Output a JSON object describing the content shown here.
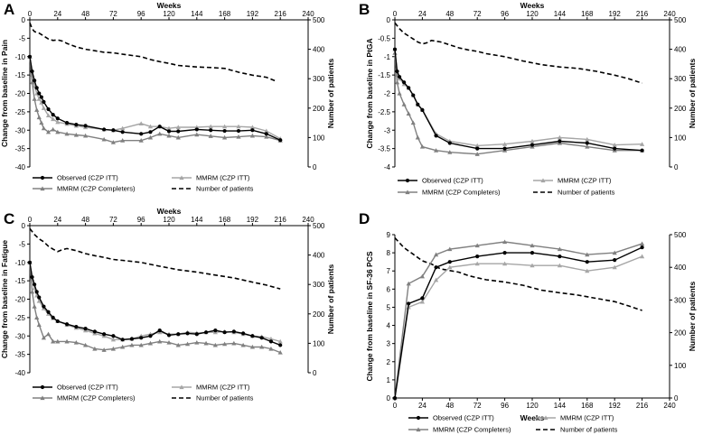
{
  "figure": {
    "legend_labels": {
      "observed": "Observed (CZP ITT)",
      "mmrm": "MMRM (CZP ITT)",
      "completers": "MMRM (CZP Completers)",
      "patients": "Number of patients"
    },
    "colors": {
      "observed": "#000000",
      "mmrm": "#a6a6a6",
      "completers": "#808080",
      "patients": "#000000"
    }
  },
  "chart_data": [
    {
      "panel": "A",
      "type": "line",
      "xlabel": "Weeks",
      "ylabel": "Change from baseline in Pain",
      "y2label": "Number of patients",
      "xticks": [
        "0",
        "24",
        "48",
        "72",
        "96",
        "120",
        "144",
        "168",
        "192",
        "216",
        "240"
      ],
      "yticks": [
        "0",
        "-5",
        "-10",
        "-15",
        "-20",
        "-25",
        "-30",
        "-35",
        "-40"
      ],
      "y2ticks": [
        "0",
        "100",
        "200",
        "300",
        "400",
        "500"
      ],
      "xlim": [
        0,
        240
      ],
      "ylim": [
        -40,
        0
      ],
      "y2lim": [
        0,
        500
      ],
      "series": [
        {
          "name": "Observed (CZP ITT)",
          "key": "observed",
          "x": [
            0,
            2,
            4,
            6,
            8,
            10,
            12,
            16,
            20,
            24,
            32,
            40,
            48,
            64,
            72,
            80,
            96,
            104,
            112,
            120,
            128,
            144,
            156,
            168,
            180,
            192,
            204,
            216
          ],
          "y": [
            -10,
            -14,
            -16.5,
            -18.5,
            -20,
            -21,
            -22.3,
            -24.3,
            -25.8,
            -26.8,
            -28,
            -28.5,
            -28.8,
            -29.8,
            -30,
            -30.5,
            -31,
            -30.5,
            -29,
            -30.3,
            -30.3,
            -29.8,
            -30,
            -30.2,
            -30.2,
            -30,
            -31,
            -32.7
          ]
        },
        {
          "name": "MMRM (CZP ITT)",
          "key": "mmrm",
          "x": [
            0,
            2,
            4,
            6,
            8,
            10,
            12,
            16,
            20,
            24,
            32,
            40,
            48,
            64,
            72,
            80,
            96,
            104,
            112,
            120,
            128,
            144,
            156,
            168,
            180,
            192,
            204,
            216
          ],
          "y": [
            -10,
            -15,
            -18,
            -20,
            -21.5,
            -22.5,
            -24,
            -26,
            -27,
            -27.8,
            -28.3,
            -28.8,
            -29.2,
            -29.8,
            -30,
            -29.5,
            -28.2,
            -29,
            -29,
            -29.5,
            -29.2,
            -29.2,
            -29,
            -29,
            -29,
            -29.2,
            -30.2,
            -32.3
          ]
        },
        {
          "name": "MMRM (CZP Completers)",
          "key": "completers",
          "x": [
            0,
            2,
            4,
            6,
            8,
            10,
            12,
            16,
            20,
            24,
            32,
            40,
            48,
            64,
            72,
            80,
            96,
            104,
            112,
            120,
            128,
            144,
            156,
            168,
            180,
            192,
            204,
            216
          ],
          "y": [
            -10,
            -17,
            -21.5,
            -24.5,
            -26.5,
            -28,
            -29.5,
            -30.5,
            -29.8,
            -30.5,
            -31,
            -31.3,
            -31.5,
            -32.5,
            -33.3,
            -32.8,
            -32.8,
            -32,
            -31,
            -31.5,
            -32,
            -31.2,
            -31.6,
            -32,
            -31.8,
            -31.5,
            -31.8,
            -32.8
          ]
        },
        {
          "name": "Number of patients",
          "key": "patients",
          "axis": "right",
          "x": [
            0,
            2,
            4,
            8,
            12,
            16,
            20,
            24,
            28,
            32,
            40,
            48,
            56,
            64,
            72,
            80,
            96,
            104,
            112,
            120,
            128,
            144,
            156,
            168,
            180,
            192,
            204,
            212
          ],
          "y": [
            490,
            470,
            460,
            455,
            445,
            435,
            430,
            432,
            428,
            420,
            408,
            400,
            395,
            390,
            388,
            383,
            375,
            365,
            358,
            352,
            345,
            340,
            338,
            335,
            322,
            312,
            305,
            292
          ]
        }
      ]
    },
    {
      "panel": "B",
      "type": "line",
      "xlabel": "Weeks",
      "ylabel": "Change from baseline in PtGA",
      "y2label": "Number of patients",
      "xticks": [
        "0",
        "24",
        "48",
        "72",
        "96",
        "120",
        "144",
        "168",
        "192",
        "216",
        "240"
      ],
      "yticks": [
        "0",
        "-0.5",
        "-1",
        "-1.5",
        "-2",
        "-2.5",
        "-3",
        "-3.5",
        "-4"
      ],
      "y2ticks": [
        "0",
        "100",
        "200",
        "300",
        "400",
        "500"
      ],
      "xlim": [
        0,
        240
      ],
      "ylim": [
        -4,
        0
      ],
      "y2lim": [
        0,
        500
      ],
      "series": [
        {
          "name": "Observed (CZP ITT)",
          "key": "observed",
          "x": [
            0,
            2,
            4,
            8,
            12,
            16,
            20,
            24,
            36,
            48,
            72,
            96,
            120,
            144,
            168,
            192,
            216
          ],
          "y": [
            -0.8,
            -1.4,
            -1.55,
            -1.7,
            -1.85,
            -2.05,
            -2.3,
            -2.45,
            -3.15,
            -3.35,
            -3.5,
            -3.5,
            -3.4,
            -3.3,
            -3.35,
            -3.5,
            -3.55
          ]
        },
        {
          "name": "MMRM (CZP ITT)",
          "key": "mmrm",
          "x": [
            0,
            2,
            4,
            8,
            12,
            16,
            20,
            24,
            36,
            48,
            72,
            96,
            120,
            144,
            168,
            192,
            216
          ],
          "y": [
            -0.8,
            -1.5,
            -1.6,
            -1.75,
            -1.85,
            -2.05,
            -2.3,
            -2.45,
            -3.1,
            -3.3,
            -3.42,
            -3.38,
            -3.3,
            -3.2,
            -3.25,
            -3.4,
            -3.38
          ]
        },
        {
          "name": "MMRM (CZP Completers)",
          "key": "completers",
          "x": [
            0,
            2,
            4,
            8,
            12,
            16,
            20,
            24,
            36,
            48,
            72,
            96,
            120,
            144,
            168,
            192,
            216
          ],
          "y": [
            -0.9,
            -1.7,
            -2.0,
            -2.3,
            -2.55,
            -2.8,
            -3.2,
            -3.45,
            -3.55,
            -3.6,
            -3.65,
            -3.55,
            -3.45,
            -3.35,
            -3.45,
            -3.55,
            -3.55
          ]
        },
        {
          "name": "Number of patients",
          "key": "patients",
          "axis": "right",
          "x": [
            0,
            4,
            8,
            12,
            16,
            20,
            24,
            28,
            32,
            40,
            48,
            56,
            64,
            72,
            80,
            96,
            112,
            128,
            144,
            160,
            176,
            192,
            204,
            216
          ],
          "y": [
            490,
            470,
            455,
            445,
            435,
            425,
            418,
            422,
            430,
            425,
            415,
            405,
            398,
            393,
            385,
            375,
            360,
            348,
            340,
            335,
            325,
            312,
            300,
            285
          ]
        }
      ]
    },
    {
      "panel": "C",
      "type": "line",
      "xlabel": "Weeks",
      "ylabel": "Change from baseline in Fatigue",
      "y2label": "Number of patients",
      "xticks": [
        "0",
        "24",
        "48",
        "72",
        "96",
        "120",
        "144",
        "168",
        "192",
        "216",
        "240"
      ],
      "yticks": [
        "0",
        "-5",
        "-10",
        "-15",
        "-20",
        "-25",
        "-30",
        "-35",
        "-40"
      ],
      "y2ticks": [
        "0",
        "100",
        "200",
        "300",
        "400",
        "500"
      ],
      "xlim": [
        0,
        240
      ],
      "ylim": [
        -40,
        0
      ],
      "y2lim": [
        0,
        500
      ],
      "series": [
        {
          "name": "Observed (CZP ITT)",
          "key": "observed",
          "x": [
            0,
            2,
            4,
            6,
            8,
            12,
            16,
            20,
            24,
            32,
            40,
            48,
            56,
            64,
            72,
            80,
            88,
            96,
            104,
            112,
            120,
            128,
            136,
            144,
            152,
            160,
            168,
            176,
            184,
            192,
            200,
            208,
            216
          ],
          "y": [
            -10,
            -14,
            -16,
            -18,
            -19.5,
            -22,
            -23.5,
            -25,
            -26,
            -26.8,
            -27.5,
            -28,
            -28.8,
            -29.5,
            -30,
            -31,
            -30.8,
            -30.5,
            -30,
            -28.5,
            -29.8,
            -29.5,
            -29.3,
            -29.5,
            -29,
            -28.5,
            -29,
            -28.8,
            -29.3,
            -30,
            -30.5,
            -31.5,
            -32.5
          ]
        },
        {
          "name": "MMRM (CZP ITT)",
          "key": "mmrm",
          "x": [
            0,
            2,
            4,
            6,
            8,
            12,
            16,
            20,
            24,
            32,
            40,
            48,
            56,
            64,
            72,
            80,
            88,
            96,
            104,
            112,
            120,
            128,
            136,
            144,
            152,
            160,
            168,
            176,
            184,
            192,
            200,
            208,
            216
          ],
          "y": [
            -10,
            -14.5,
            -17,
            -19,
            -20.5,
            -22.5,
            -24,
            -25.2,
            -26,
            -27,
            -27.8,
            -28.5,
            -29.3,
            -30,
            -31,
            -31,
            -30.8,
            -30,
            -29.5,
            -29,
            -29.5,
            -29.5,
            -29,
            -29.2,
            -29,
            -29,
            -28.8,
            -29,
            -29.5,
            -30,
            -30.2,
            -30.8,
            -31.5
          ]
        },
        {
          "name": "MMRM (CZP Completers)",
          "key": "completers",
          "x": [
            0,
            2,
            4,
            6,
            8,
            12,
            16,
            20,
            24,
            32,
            40,
            48,
            56,
            64,
            72,
            80,
            88,
            96,
            104,
            112,
            120,
            128,
            136,
            144,
            152,
            160,
            168,
            176,
            184,
            192,
            200,
            208,
            216
          ],
          "y": [
            -10,
            -18,
            -22,
            -25,
            -27,
            -30.5,
            -29.5,
            -31.5,
            -31.5,
            -31.5,
            -31.8,
            -32.5,
            -33.5,
            -33.8,
            -33.5,
            -33,
            -32.5,
            -32.5,
            -32,
            -31.5,
            -31.8,
            -32.5,
            -32.2,
            -31.8,
            -32,
            -32.5,
            -32.2,
            -32,
            -32.5,
            -33,
            -33,
            -33.5,
            -34.5
          ]
        },
        {
          "name": "Number of patients",
          "key": "patients",
          "axis": "right",
          "x": [
            0,
            4,
            8,
            12,
            16,
            20,
            24,
            28,
            32,
            40,
            48,
            56,
            64,
            72,
            80,
            96,
            112,
            128,
            144,
            160,
            176,
            192,
            204,
            216
          ],
          "y": [
            490,
            470,
            455,
            445,
            430,
            420,
            412,
            418,
            422,
            415,
            405,
            398,
            392,
            385,
            382,
            375,
            362,
            350,
            342,
            332,
            322,
            308,
            298,
            285
          ]
        }
      ]
    },
    {
      "panel": "D",
      "type": "line",
      "xlabel": "Weeks",
      "ylabel": "Change from baseline in SF-36 PCS",
      "y2label": "Number of patients",
      "xticks": [
        "0",
        "24",
        "48",
        "72",
        "96",
        "120",
        "144",
        "168",
        "192",
        "216",
        "240"
      ],
      "yticks": [
        "0",
        "1",
        "2",
        "3",
        "4",
        "5",
        "6",
        "7",
        "8",
        "9"
      ],
      "y2ticks": [
        "0",
        "100",
        "200",
        "300",
        "400",
        "500"
      ],
      "xlim": [
        0,
        240
      ],
      "ylim": [
        0,
        9
      ],
      "y2lim": [
        0,
        500
      ],
      "series": [
        {
          "name": "Observed (CZP ITT)",
          "key": "observed",
          "x": [
            0,
            12,
            24,
            36,
            48,
            72,
            96,
            120,
            144,
            168,
            192,
            216
          ],
          "y": [
            0,
            5.2,
            5.5,
            7.2,
            7.5,
            7.8,
            8.0,
            8.0,
            7.8,
            7.5,
            7.6,
            8.3
          ]
        },
        {
          "name": "MMRM (CZP ITT)",
          "key": "mmrm",
          "x": [
            0,
            12,
            24,
            36,
            48,
            72,
            96,
            120,
            144,
            168,
            192,
            216
          ],
          "y": [
            0,
            5.0,
            5.3,
            6.5,
            7.2,
            7.4,
            7.4,
            7.3,
            7.3,
            7.0,
            7.2,
            7.8
          ]
        },
        {
          "name": "MMRM (CZP Completers)",
          "key": "completers",
          "x": [
            0,
            12,
            24,
            36,
            48,
            72,
            96,
            120,
            144,
            168,
            192,
            216
          ],
          "y": [
            0,
            6.3,
            6.7,
            7.9,
            8.2,
            8.4,
            8.6,
            8.4,
            8.2,
            7.9,
            8.0,
            8.5
          ]
        },
        {
          "name": "Number of patients",
          "key": "patients",
          "axis": "right",
          "x": [
            0,
            8,
            16,
            24,
            32,
            40,
            48,
            56,
            64,
            72,
            80,
            96,
            112,
            128,
            144,
            160,
            176,
            192,
            204,
            216
          ],
          "y": [
            490,
            460,
            440,
            420,
            410,
            395,
            390,
            385,
            375,
            368,
            362,
            355,
            345,
            330,
            322,
            315,
            305,
            295,
            282,
            268
          ]
        }
      ]
    }
  ]
}
